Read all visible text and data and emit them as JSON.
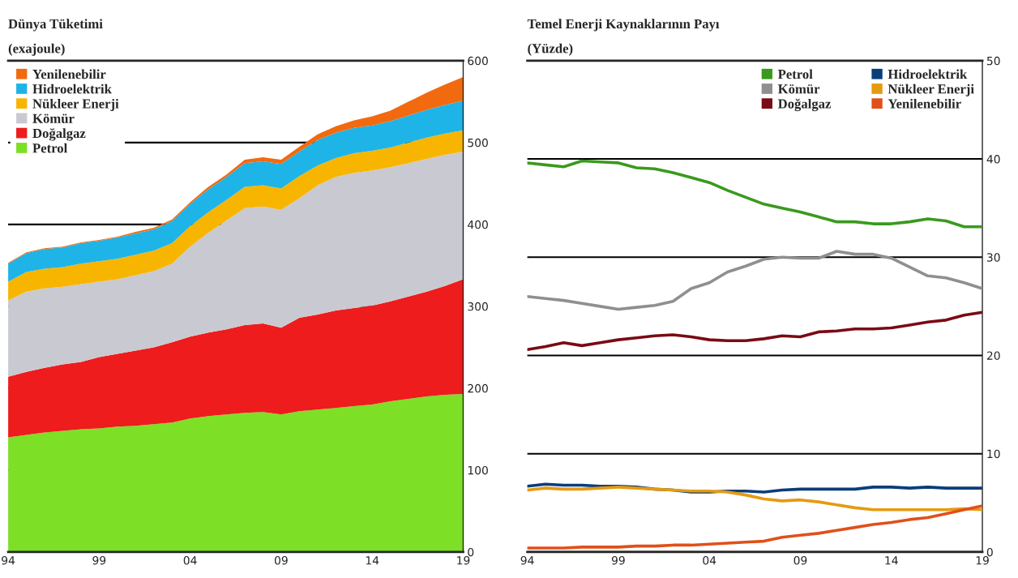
{
  "chart_data": [
    {
      "type": "area",
      "stacked": true,
      "title": "Dünya Tüketimi",
      "subtitle": "(exajoule)",
      "x": [
        1994,
        1995,
        1996,
        1997,
        1998,
        1999,
        2000,
        2001,
        2002,
        2003,
        2004,
        2005,
        2006,
        2007,
        2008,
        2009,
        2010,
        2011,
        2012,
        2013,
        2014,
        2015,
        2016,
        2017,
        2018,
        2019
      ],
      "series": [
        {
          "name": "Petrol",
          "color": "#7ddf26",
          "values": [
            140,
            143,
            146,
            148,
            150,
            151,
            153,
            154,
            156,
            158,
            163,
            166,
            168,
            170,
            171,
            168,
            172,
            174,
            176,
            178,
            180,
            184,
            187,
            190,
            192,
            193
          ]
        },
        {
          "name": "Doğalgaz",
          "color": "#ee1c1c",
          "values": [
            74,
            77,
            79,
            81,
            82,
            87,
            89,
            92,
            94,
            98,
            100,
            102,
            104,
            107,
            108,
            106,
            114,
            116,
            119,
            120,
            121,
            122,
            125,
            128,
            133,
            140
          ]
        },
        {
          "name": "Kömür",
          "color": "#c9c9d1",
          "values": [
            93,
            98,
            97,
            95,
            95,
            92,
            91,
            92,
            93,
            96,
            110,
            122,
            133,
            143,
            143,
            144,
            146,
            158,
            163,
            165,
            165,
            164,
            163,
            162,
            160,
            156
          ]
        },
        {
          "name": "Nükleer Enerji",
          "color": "#f7b500",
          "values": [
            23,
            24,
            24,
            24,
            25,
            25,
            25,
            25,
            25,
            25,
            25,
            25,
            25,
            26,
            26,
            26,
            27,
            24,
            23,
            24,
            24,
            24,
            25,
            26,
            26,
            26
          ]
        },
        {
          "name": "Hidroelektrik",
          "color": "#1eb4e8",
          "values": [
            22,
            23,
            24,
            24,
            25,
            25,
            26,
            26,
            26,
            27,
            27,
            28,
            28,
            29,
            29,
            30,
            30,
            31,
            31,
            31,
            31,
            32,
            33,
            34,
            35,
            36
          ]
        },
        {
          "name": "Yenilenebilir",
          "color": "#f26a10",
          "values": [
            1,
            1,
            1,
            1,
            1,
            1,
            1,
            2,
            2,
            2,
            2,
            3,
            3,
            4,
            5,
            5,
            6,
            7,
            8,
            9,
            11,
            13,
            17,
            21,
            25,
            29
          ]
        }
      ],
      "xlim": [
        1994,
        2019
      ],
      "xticks": [
        {
          "value": 1994,
          "label": "94"
        },
        {
          "value": 1999,
          "label": "99"
        },
        {
          "value": 2004,
          "label": "04"
        },
        {
          "value": 2009,
          "label": "09"
        },
        {
          "value": 2014,
          "label": "14"
        },
        {
          "value": 2019,
          "label": "19"
        }
      ],
      "ylim": [
        0,
        600
      ],
      "yticks": [
        0,
        100,
        200,
        300,
        400,
        500,
        600
      ],
      "grid": "y",
      "legend": "top left"
    },
    {
      "type": "line",
      "title": "Temel Enerji Kaynaklarının Payı",
      "subtitle": "(Yüzde)",
      "x": [
        1994,
        1995,
        1996,
        1997,
        1998,
        1999,
        2000,
        2001,
        2002,
        2003,
        2004,
        2005,
        2006,
        2007,
        2008,
        2009,
        2010,
        2011,
        2012,
        2013,
        2014,
        2015,
        2016,
        2017,
        2018,
        2019
      ],
      "series": [
        {
          "name": "Petrol",
          "color": "#3a9a1e",
          "values": [
            39.6,
            39.4,
            39.2,
            39.8,
            39.7,
            39.6,
            39.1,
            39.0,
            38.6,
            38.1,
            37.6,
            36.8,
            36.1,
            35.4,
            35.0,
            34.6,
            34.1,
            33.6,
            33.6,
            33.4,
            33.4,
            33.6,
            33.9,
            33.7,
            33.1,
            33.1
          ]
        },
        {
          "name": "Kömür",
          "color": "#8f8f8f",
          "values": [
            26.0,
            25.8,
            25.6,
            25.3,
            25.0,
            24.7,
            24.9,
            25.1,
            25.5,
            26.8,
            27.4,
            28.5,
            29.1,
            29.8,
            30.0,
            29.9,
            29.9,
            30.6,
            30.3,
            30.3,
            29.9,
            29.0,
            28.1,
            27.9,
            27.4,
            26.8
          ]
        },
        {
          "name": "Doğalgaz",
          "color": "#7a0a14",
          "values": [
            20.6,
            20.9,
            21.3,
            21.0,
            21.3,
            21.6,
            21.8,
            22.0,
            22.1,
            21.9,
            21.6,
            21.5,
            21.5,
            21.7,
            22.0,
            21.9,
            22.4,
            22.5,
            22.7,
            22.7,
            22.8,
            23.1,
            23.4,
            23.6,
            24.1,
            24.4
          ]
        },
        {
          "name": "Hidroelektrik",
          "color": "#0a3d7a",
          "values": [
            6.7,
            6.9,
            6.8,
            6.8,
            6.7,
            6.7,
            6.6,
            6.4,
            6.3,
            6.1,
            6.1,
            6.2,
            6.2,
            6.1,
            6.3,
            6.4,
            6.4,
            6.4,
            6.4,
            6.6,
            6.6,
            6.5,
            6.6,
            6.5,
            6.5,
            6.5
          ]
        },
        {
          "name": "Nükleer Enerji",
          "color": "#e59a10",
          "values": [
            6.3,
            6.5,
            6.4,
            6.4,
            6.5,
            6.6,
            6.5,
            6.4,
            6.3,
            6.2,
            6.2,
            6.1,
            5.8,
            5.4,
            5.2,
            5.3,
            5.1,
            4.8,
            4.5,
            4.3,
            4.3,
            4.3,
            4.3,
            4.3,
            4.4,
            4.3
          ]
        },
        {
          "name": "Yenilenebilir",
          "color": "#e0501a",
          "values": [
            0.4,
            0.4,
            0.4,
            0.5,
            0.5,
            0.5,
            0.6,
            0.6,
            0.7,
            0.7,
            0.8,
            0.9,
            1.0,
            1.1,
            1.5,
            1.7,
            1.9,
            2.2,
            2.5,
            2.8,
            3.0,
            3.3,
            3.5,
            3.9,
            4.3,
            4.7
          ]
        }
      ],
      "xlim": [
        1994,
        2019
      ],
      "xticks": [
        {
          "value": 1994,
          "label": "94"
        },
        {
          "value": 1999,
          "label": "99"
        },
        {
          "value": 2004,
          "label": "04"
        },
        {
          "value": 2009,
          "label": "09"
        },
        {
          "value": 2014,
          "label": "14"
        },
        {
          "value": 2019,
          "label": "19"
        }
      ],
      "ylim": [
        0,
        50
      ],
      "yticks": [
        0,
        10,
        20,
        30,
        40,
        50
      ],
      "grid": "y",
      "legend": "top right",
      "line_style": "solid",
      "marker": "none"
    }
  ]
}
